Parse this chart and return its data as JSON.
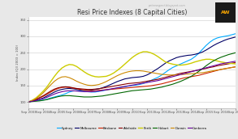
{
  "title": "Resi Price Indexes (8 Capital Cities)",
  "ylabel": "Index (Q3 2003 = 100)",
  "watermark": "peteewgent.blogspot.com",
  "bg_color": "#e8e8e8",
  "plot_bg_color": "#ffffff",
  "ylim": [
    80,
    360
  ],
  "yticks": [
    100,
    150,
    200,
    250,
    300,
    350
  ],
  "n_points": 57,
  "cities": [
    "Sydney",
    "Melbourne",
    "Brisbane",
    "Adelaide",
    "Perth",
    "Hobart",
    "Darwin",
    "Canberra"
  ],
  "colors": [
    "#00aaff",
    "#000066",
    "#cc2200",
    "#880000",
    "#cccc00",
    "#006600",
    "#cc8800",
    "#660099"
  ],
  "linewidths": [
    0.8,
    0.8,
    0.8,
    0.8,
    1.0,
    0.8,
    0.8,
    0.8
  ],
  "sydney": [
    100,
    102,
    104,
    104,
    106,
    108,
    112,
    115,
    118,
    121,
    125,
    130,
    133,
    134,
    133,
    132,
    131,
    130,
    130,
    132,
    134,
    136,
    138,
    140,
    142,
    144,
    146,
    148,
    150,
    151,
    153,
    156,
    160,
    165,
    170,
    175,
    182,
    190,
    198,
    205,
    210,
    215,
    220,
    225,
    230,
    238,
    248,
    260,
    272,
    282,
    290,
    295,
    298,
    300,
    302,
    305,
    308
  ],
  "melbourne": [
    100,
    102,
    105,
    108,
    112,
    118,
    124,
    130,
    135,
    138,
    140,
    141,
    140,
    138,
    136,
    135,
    135,
    136,
    138,
    140,
    143,
    147,
    152,
    157,
    162,
    166,
    170,
    172,
    174,
    175,
    176,
    178,
    182,
    188,
    195,
    202,
    210,
    218,
    225,
    230,
    235,
    238,
    240,
    242,
    243,
    245,
    248,
    252,
    258,
    265,
    272,
    278,
    283,
    288,
    292,
    295,
    298
  ],
  "brisbane": [
    100,
    103,
    107,
    112,
    117,
    123,
    130,
    136,
    141,
    144,
    145,
    144,
    142,
    140,
    138,
    136,
    135,
    134,
    134,
    135,
    136,
    137,
    138,
    139,
    140,
    141,
    142,
    143,
    144,
    145,
    146,
    147,
    148,
    149,
    151,
    153,
    155,
    158,
    161,
    164,
    167,
    170,
    173,
    175,
    177,
    179,
    181,
    184,
    187,
    190,
    193,
    196,
    199,
    201,
    203,
    205,
    207
  ],
  "adelaide": [
    100,
    104,
    108,
    113,
    119,
    126,
    133,
    139,
    143,
    145,
    146,
    145,
    143,
    141,
    140,
    139,
    138,
    138,
    139,
    140,
    142,
    144,
    146,
    148,
    150,
    152,
    154,
    156,
    157,
    158,
    159,
    161,
    163,
    165,
    167,
    169,
    172,
    175,
    178,
    181,
    184,
    187,
    189,
    191,
    193,
    195,
    197,
    200,
    202,
    205,
    207,
    210,
    212,
    214,
    216,
    218,
    220
  ],
  "perth": [
    100,
    105,
    112,
    122,
    133,
    146,
    162,
    178,
    192,
    203,
    210,
    214,
    213,
    208,
    200,
    192,
    185,
    180,
    177,
    176,
    177,
    178,
    182,
    188,
    196,
    205,
    215,
    225,
    235,
    243,
    249,
    253,
    253,
    250,
    245,
    238,
    230,
    222,
    218,
    215,
    213,
    212,
    213,
    215,
    218,
    222,
    225,
    228,
    230,
    230,
    228,
    225,
    222,
    220,
    218,
    217,
    216
  ],
  "hobart": [
    100,
    101,
    102,
    103,
    105,
    107,
    110,
    113,
    116,
    118,
    119,
    119,
    118,
    117,
    116,
    115,
    115,
    115,
    116,
    117,
    118,
    120,
    122,
    124,
    126,
    128,
    130,
    132,
    134,
    135,
    136,
    137,
    138,
    139,
    141,
    143,
    145,
    148,
    151,
    154,
    158,
    162,
    167,
    172,
    178,
    185,
    193,
    201,
    210,
    218,
    225,
    231,
    236,
    240,
    244,
    247,
    250
  ],
  "darwin": [
    100,
    104,
    110,
    118,
    128,
    140,
    152,
    163,
    171,
    176,
    177,
    174,
    169,
    163,
    158,
    154,
    151,
    150,
    151,
    153,
    157,
    162,
    168,
    174,
    180,
    185,
    189,
    192,
    194,
    195,
    195,
    194,
    192,
    190,
    188,
    186,
    184,
    183,
    182,
    182,
    182,
    183,
    184,
    185,
    186,
    187,
    188,
    189,
    191,
    193,
    195,
    197,
    199,
    201,
    203,
    205,
    207
  ],
  "canberra": [
    100,
    102,
    104,
    107,
    110,
    114,
    119,
    124,
    128,
    131,
    133,
    134,
    134,
    133,
    132,
    131,
    131,
    131,
    132,
    133,
    135,
    137,
    139,
    141,
    143,
    145,
    147,
    149,
    151,
    153,
    155,
    157,
    159,
    161,
    163,
    165,
    168,
    171,
    174,
    177,
    180,
    183,
    186,
    189,
    192,
    195,
    198,
    201,
    204,
    207,
    210,
    213,
    216,
    218,
    220,
    222,
    224
  ]
}
